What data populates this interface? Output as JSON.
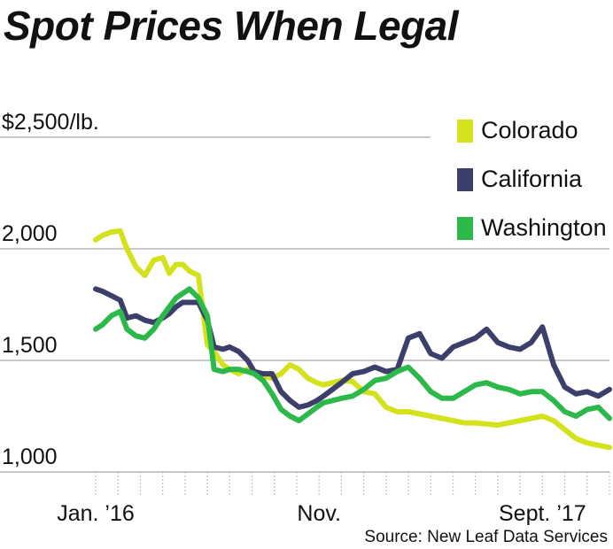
{
  "title": "Spot Prices When Legal",
  "source": "Source: New Leaf Data Services",
  "chart_data": {
    "type": "line",
    "title": "Spot Prices When Legal",
    "y_unit_label": "$2,500/lb.",
    "y_ticks": [
      "1,000",
      "1,500",
      "2,000"
    ],
    "ylim": [
      1000,
      2500
    ],
    "x_ticks": [
      {
        "label": "Jan. ’16",
        "month": 0
      },
      {
        "label": "Nov.",
        "month": 10
      },
      {
        "label": "Sept. ’17",
        "month": 20
      }
    ],
    "xlim": [
      0,
      23
    ],
    "grid": true,
    "legend_position": "top-right",
    "series": [
      {
        "name": "Colorado",
        "color": "#d4e21e",
        "points": [
          [
            0,
            2040
          ],
          [
            0.3,
            2060
          ],
          [
            0.7,
            2075
          ],
          [
            1.1,
            2080
          ],
          [
            1.4,
            2000
          ],
          [
            1.8,
            1920
          ],
          [
            2.2,
            1880
          ],
          [
            2.6,
            1950
          ],
          [
            3.0,
            1960
          ],
          [
            3.3,
            1890
          ],
          [
            3.6,
            1930
          ],
          [
            3.9,
            1930
          ],
          [
            4.2,
            1900
          ],
          [
            4.6,
            1880
          ],
          [
            5.0,
            1570
          ],
          [
            5.3,
            1540
          ],
          [
            5.7,
            1480
          ],
          [
            6.0,
            1460
          ],
          [
            6.4,
            1440
          ],
          [
            6.8,
            1460
          ],
          [
            7.1,
            1450
          ],
          [
            7.5,
            1430
          ],
          [
            7.9,
            1420
          ],
          [
            8.3,
            1440
          ],
          [
            8.7,
            1480
          ],
          [
            9.1,
            1460
          ],
          [
            9.5,
            1420
          ],
          [
            9.9,
            1400
          ],
          [
            10.2,
            1390
          ],
          [
            10.6,
            1400
          ],
          [
            11.0,
            1410
          ],
          [
            11.5,
            1405
          ],
          [
            12.0,
            1360
          ],
          [
            12.5,
            1350
          ],
          [
            13.0,
            1290
          ],
          [
            13.5,
            1270
          ],
          [
            14.0,
            1270
          ],
          [
            14.5,
            1260
          ],
          [
            15.0,
            1250
          ],
          [
            15.5,
            1240
          ],
          [
            16.0,
            1230
          ],
          [
            16.5,
            1220
          ],
          [
            17.0,
            1220
          ],
          [
            17.5,
            1215
          ],
          [
            18.0,
            1210
          ],
          [
            18.5,
            1220
          ],
          [
            19.0,
            1230
          ],
          [
            19.5,
            1240
          ],
          [
            20.0,
            1250
          ],
          [
            20.5,
            1230
          ],
          [
            21.0,
            1190
          ],
          [
            21.5,
            1150
          ],
          [
            22.0,
            1130
          ],
          [
            22.5,
            1120
          ],
          [
            23.0,
            1110
          ]
        ]
      },
      {
        "name": "California",
        "color": "#3d3f6b",
        "points": [
          [
            0,
            1820
          ],
          [
            0.3,
            1810
          ],
          [
            0.7,
            1790
          ],
          [
            1.1,
            1770
          ],
          [
            1.4,
            1690
          ],
          [
            1.8,
            1700
          ],
          [
            2.2,
            1680
          ],
          [
            2.6,
            1670
          ],
          [
            3.0,
            1690
          ],
          [
            3.3,
            1710
          ],
          [
            3.6,
            1740
          ],
          [
            3.9,
            1760
          ],
          [
            4.2,
            1760
          ],
          [
            4.6,
            1760
          ],
          [
            5.0,
            1680
          ],
          [
            5.3,
            1560
          ],
          [
            5.7,
            1550
          ],
          [
            6.0,
            1560
          ],
          [
            6.4,
            1540
          ],
          [
            6.8,
            1500
          ],
          [
            7.1,
            1450
          ],
          [
            7.5,
            1440
          ],
          [
            7.9,
            1440
          ],
          [
            8.3,
            1360
          ],
          [
            8.7,
            1320
          ],
          [
            9.1,
            1290
          ],
          [
            9.5,
            1300
          ],
          [
            9.9,
            1320
          ],
          [
            10.2,
            1340
          ],
          [
            10.6,
            1370
          ],
          [
            11.0,
            1400
          ],
          [
            11.5,
            1440
          ],
          [
            12.0,
            1450
          ],
          [
            12.5,
            1470
          ],
          [
            13.0,
            1450
          ],
          [
            13.5,
            1460
          ],
          [
            14.0,
            1600
          ],
          [
            14.5,
            1620
          ],
          [
            15.0,
            1530
          ],
          [
            15.5,
            1510
          ],
          [
            16.0,
            1560
          ],
          [
            16.5,
            1580
          ],
          [
            17.0,
            1600
          ],
          [
            17.5,
            1640
          ],
          [
            18.0,
            1580
          ],
          [
            18.5,
            1560
          ],
          [
            19.0,
            1550
          ],
          [
            19.5,
            1580
          ],
          [
            20.0,
            1650
          ],
          [
            20.5,
            1480
          ],
          [
            21.0,
            1380
          ],
          [
            21.5,
            1350
          ],
          [
            22.0,
            1360
          ],
          [
            22.5,
            1340
          ],
          [
            23.0,
            1370
          ]
        ]
      },
      {
        "name": "Washington",
        "color": "#2db84a",
        "points": [
          [
            0,
            1640
          ],
          [
            0.3,
            1660
          ],
          [
            0.7,
            1700
          ],
          [
            1.1,
            1720
          ],
          [
            1.4,
            1640
          ],
          [
            1.8,
            1610
          ],
          [
            2.2,
            1600
          ],
          [
            2.6,
            1640
          ],
          [
            3.0,
            1700
          ],
          [
            3.3,
            1740
          ],
          [
            3.6,
            1780
          ],
          [
            3.9,
            1800
          ],
          [
            4.2,
            1820
          ],
          [
            4.6,
            1780
          ],
          [
            5.0,
            1700
          ],
          [
            5.3,
            1460
          ],
          [
            5.7,
            1450
          ],
          [
            6.0,
            1460
          ],
          [
            6.4,
            1460
          ],
          [
            6.8,
            1450
          ],
          [
            7.1,
            1440
          ],
          [
            7.5,
            1410
          ],
          [
            7.9,
            1350
          ],
          [
            8.3,
            1280
          ],
          [
            8.7,
            1250
          ],
          [
            9.1,
            1230
          ],
          [
            9.5,
            1260
          ],
          [
            9.9,
            1290
          ],
          [
            10.2,
            1310
          ],
          [
            10.6,
            1320
          ],
          [
            11.0,
            1330
          ],
          [
            11.5,
            1340
          ],
          [
            12.0,
            1370
          ],
          [
            12.5,
            1410
          ],
          [
            13.0,
            1420
          ],
          [
            13.5,
            1450
          ],
          [
            14.0,
            1470
          ],
          [
            14.5,
            1420
          ],
          [
            15.0,
            1360
          ],
          [
            15.5,
            1330
          ],
          [
            16.0,
            1330
          ],
          [
            16.5,
            1360
          ],
          [
            17.0,
            1390
          ],
          [
            17.5,
            1400
          ],
          [
            18.0,
            1380
          ],
          [
            18.5,
            1370
          ],
          [
            19.0,
            1350
          ],
          [
            19.5,
            1360
          ],
          [
            20.0,
            1360
          ],
          [
            20.5,
            1320
          ],
          [
            21.0,
            1270
          ],
          [
            21.5,
            1250
          ],
          [
            22.0,
            1280
          ],
          [
            22.5,
            1290
          ],
          [
            23.0,
            1240
          ]
        ]
      }
    ]
  }
}
